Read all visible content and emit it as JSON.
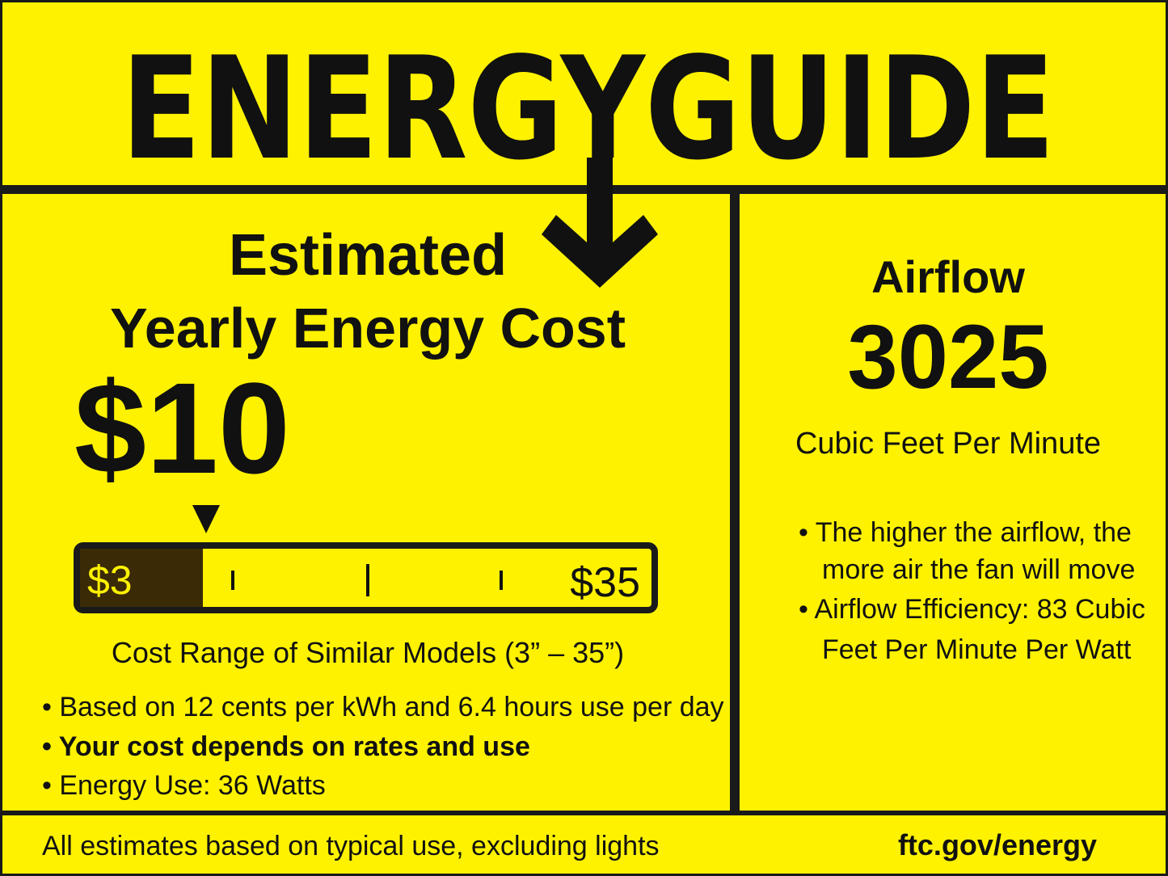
{
  "header": {
    "title": "ENERGYGUIDE"
  },
  "cost": {
    "heading": [
      "Estimated",
      "Yearly Energy Cost"
    ],
    "amount": "$10",
    "scale": {
      "low": "$3",
      "high": "$35"
    },
    "range_caption": "Cost Range of Similar Models (3” – 35”)",
    "notes": [
      "• Based on 12 cents per kWh and 6.4 hours use per day",
      "• Your cost depends on rates and use",
      "• Energy Use: 36 Watts"
    ]
  },
  "airflow": {
    "heading": "Airflow",
    "amount": "3025",
    "unit": "Cubic Feet Per Minute",
    "notes": [
      [
        "• The higher the airflow, the",
        "more air the fan will move"
      ],
      [
        "• Airflow Efficiency: 83 Cubic",
        "Feet Per Minute Per Watt"
      ]
    ]
  },
  "footer": {
    "note": "All estimates based on typical use, excluding lights",
    "link": "ftc.gov/energy"
  }
}
